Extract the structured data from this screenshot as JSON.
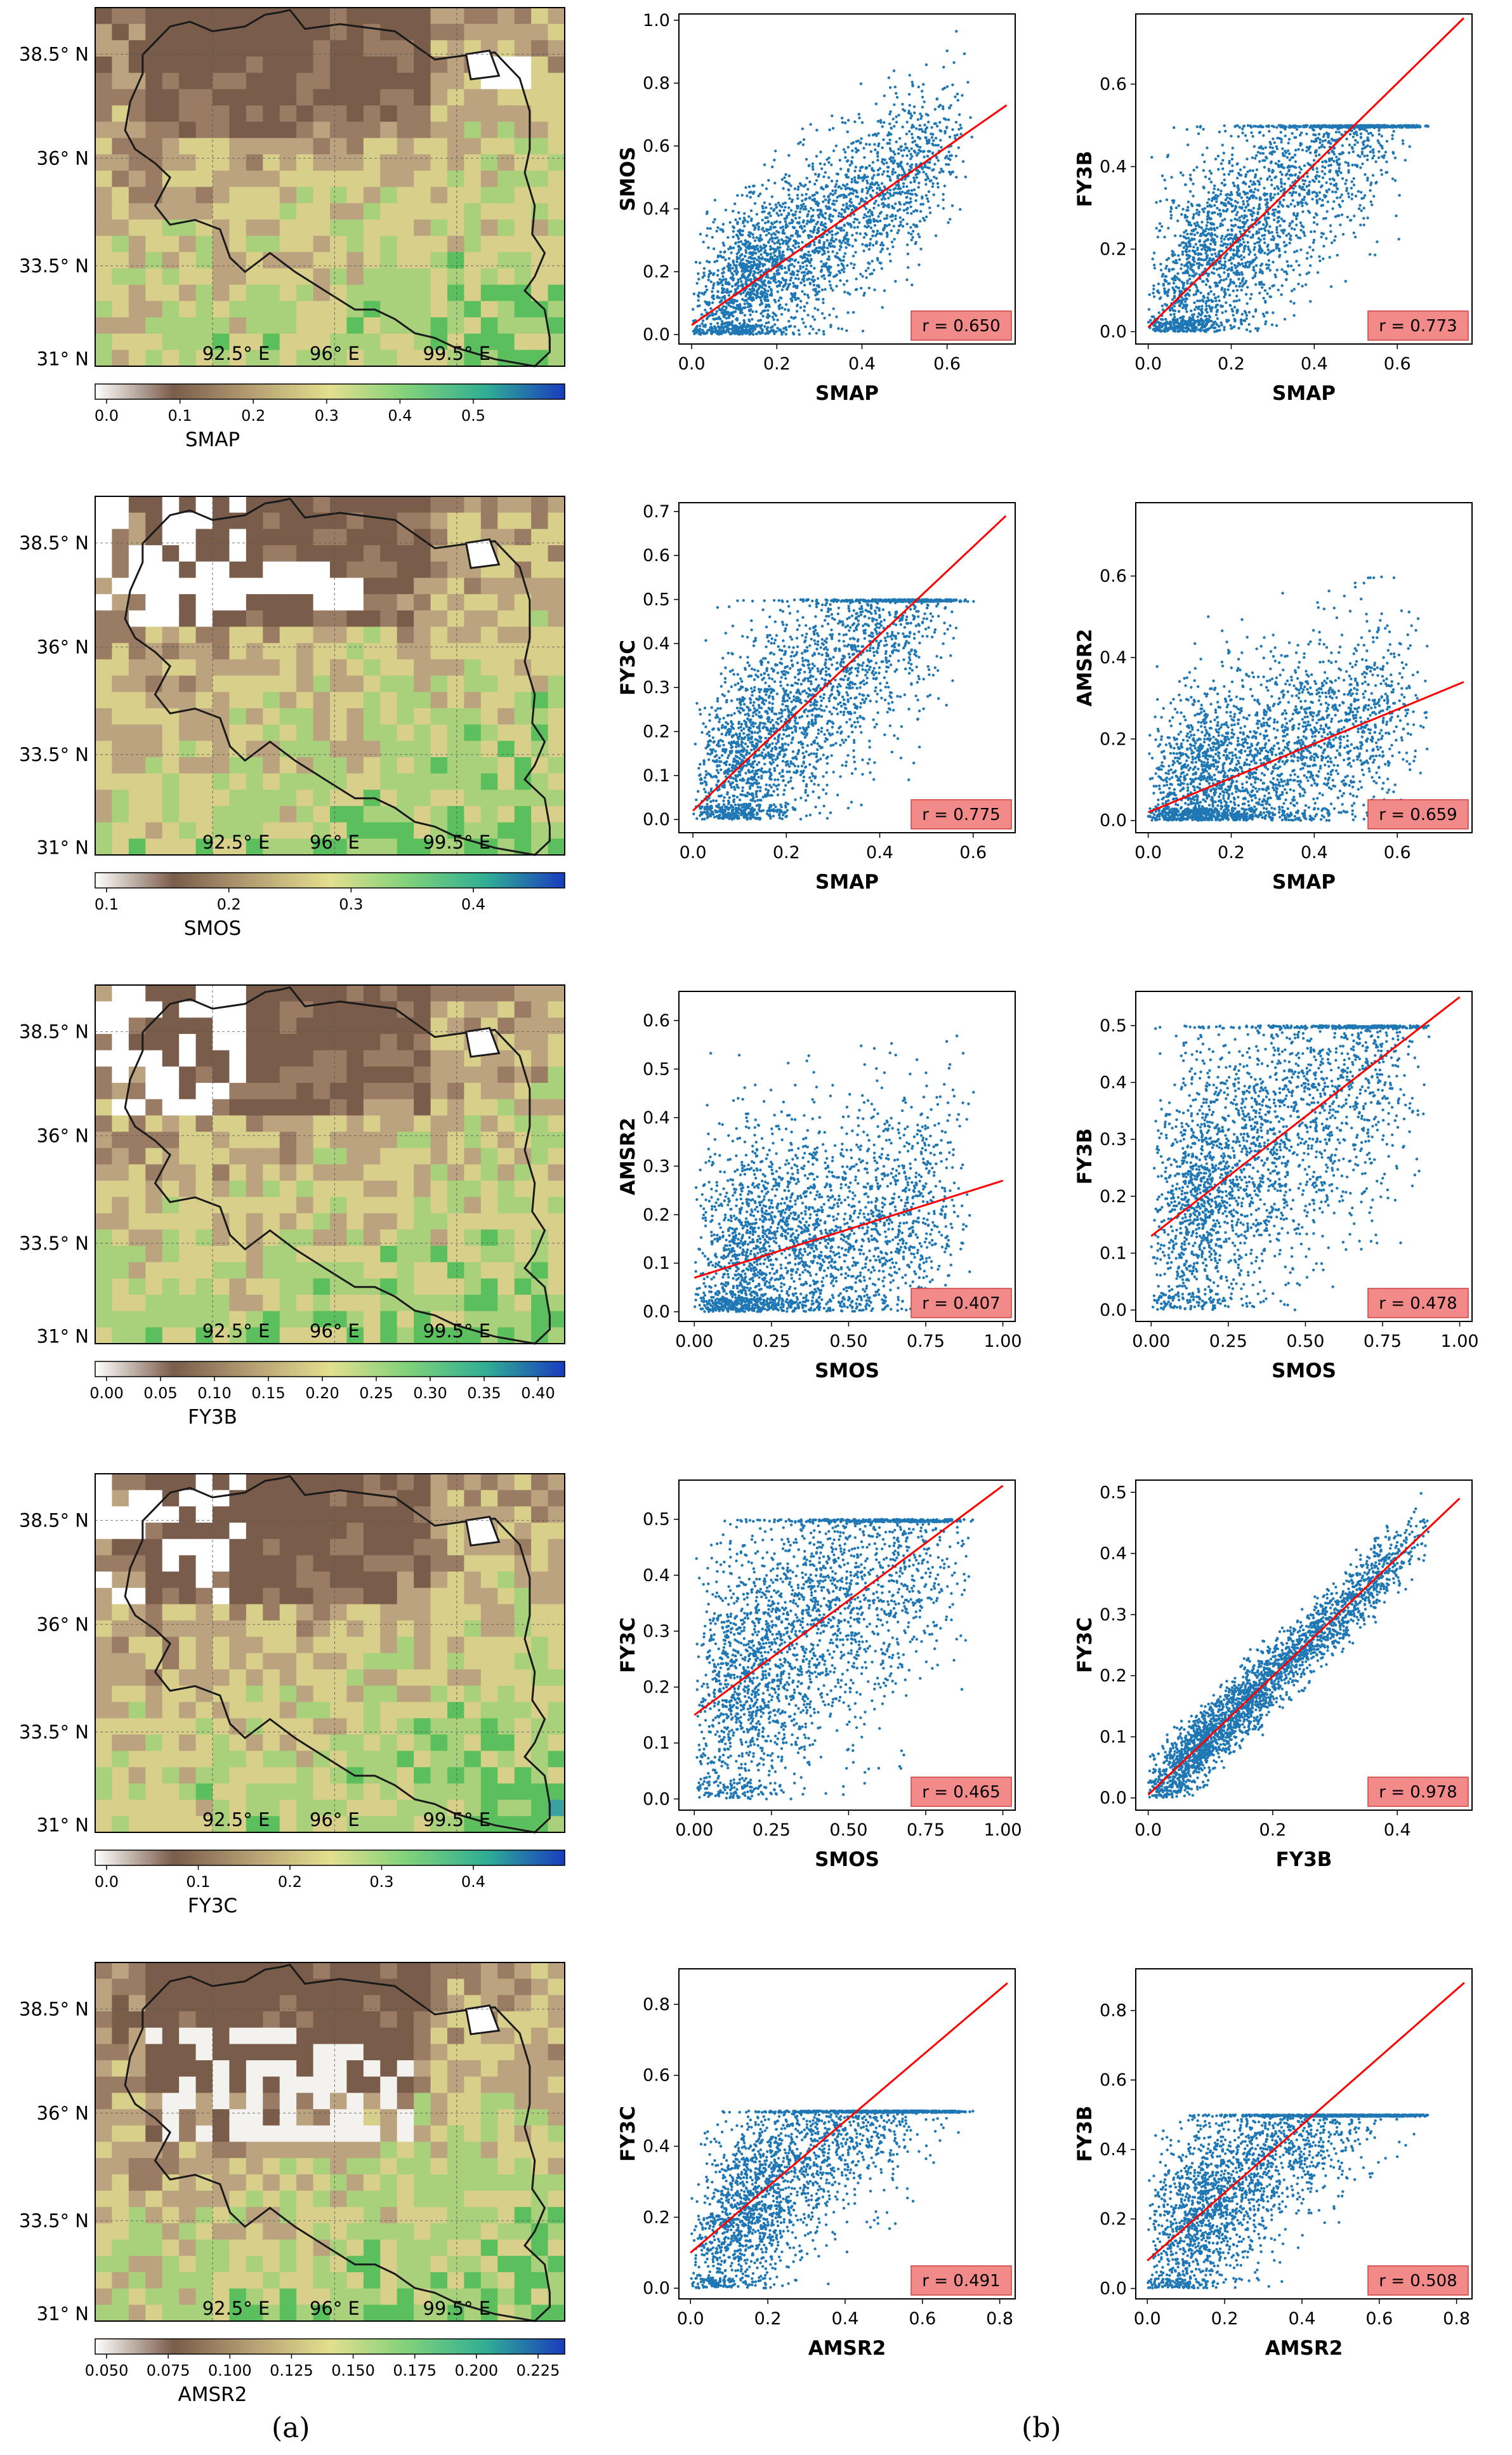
{
  "colors": {
    "scatter": "#1f77b4",
    "fit_line": "#ff0000",
    "r_box_fill": "#f28a8a",
    "r_box_stroke": "#d04040",
    "boundary": "#1a1a1a",
    "land_dry": "#7a5c4a",
    "land_mid": "#d8cf8a",
    "land_wet": "#5bbf5e",
    "water_high": "#2040b0",
    "missing": "#ffffff"
  },
  "captions": {
    "a": "(a)",
    "b": "(b)"
  },
  "maps": [
    {
      "name": "SMAP",
      "lat_ticks": [
        "38.5° N",
        "36° N",
        "33.5° N",
        "31° N"
      ],
      "lon_ticks": [
        "92.5° E",
        "96° E",
        "99.5° E"
      ],
      "colorbar_ticks": [
        "0.0",
        "0.1",
        "0.2",
        "0.3",
        "0.4",
        "0.5"
      ],
      "colorbar_label": "SMAP"
    },
    {
      "name": "SMOS",
      "lat_ticks": [
        "38.5° N",
        "36° N",
        "33.5° N",
        "31° N"
      ],
      "lon_ticks": [
        "92.5° E",
        "96° E",
        "99.5° E"
      ],
      "colorbar_ticks": [
        "0.1",
        "0.2",
        "0.3",
        "0.4"
      ],
      "colorbar_label": "SMOS"
    },
    {
      "name": "FY3B",
      "lat_ticks": [
        "38.5° N",
        "36° N",
        "33.5° N",
        "31° N"
      ],
      "lon_ticks": [
        "92.5° E",
        "96° E",
        "99.5° E"
      ],
      "colorbar_ticks": [
        "0.00",
        "0.05",
        "0.10",
        "0.15",
        "0.20",
        "0.25",
        "0.30",
        "0.35",
        "0.40"
      ],
      "colorbar_label": "FY3B"
    },
    {
      "name": "FY3C",
      "lat_ticks": [
        "38.5° N",
        "36° N",
        "33.5° N",
        "31° N"
      ],
      "lon_ticks": [
        "92.5° E",
        "96° E",
        "99.5° E"
      ],
      "colorbar_ticks": [
        "0.0",
        "0.1",
        "0.2",
        "0.3",
        "0.4"
      ],
      "colorbar_label": "FY3C"
    },
    {
      "name": "AMSR2",
      "lat_ticks": [
        "38.5° N",
        "36° N",
        "33.5° N",
        "31° N"
      ],
      "lon_ticks": [
        "92.5° E",
        "96° E",
        "99.5° E"
      ],
      "colorbar_ticks": [
        "0.050",
        "0.075",
        "0.100",
        "0.125",
        "0.150",
        "0.175",
        "0.200",
        "0.225"
      ],
      "colorbar_label": "AMSR2"
    }
  ],
  "chart_data": [
    {
      "type": "scatter",
      "xlabel": "SMAP",
      "ylabel": "SMOS",
      "xlim": [
        -0.03,
        0.76
      ],
      "ylim": [
        -0.03,
        1.02
      ],
      "xticks": [
        "0.0",
        "0.2",
        "0.4",
        "0.6"
      ],
      "yticks": [
        "0.0",
        "0.2",
        "0.4",
        "0.6",
        "0.8",
        "1.0"
      ],
      "r_label": "r = 0.650",
      "fit_line": {
        "x": [
          0.0,
          0.74
        ],
        "y": [
          0.03,
          0.73
        ]
      }
    },
    {
      "type": "scatter",
      "xlabel": "SMAP",
      "ylabel": "FY3B",
      "xlim": [
        -0.03,
        0.78
      ],
      "ylim": [
        -0.03,
        0.77
      ],
      "xticks": [
        "0.0",
        "0.2",
        "0.4",
        "0.6"
      ],
      "yticks": [
        "0.0",
        "0.2",
        "0.4",
        "0.6"
      ],
      "r_label": "r = 0.773",
      "fit_line": {
        "x": [
          0.0,
          0.76
        ],
        "y": [
          0.01,
          0.76
        ]
      }
    },
    {
      "type": "scatter",
      "xlabel": "SMAP",
      "ylabel": "FY3C",
      "xlim": [
        -0.03,
        0.69
      ],
      "ylim": [
        -0.03,
        0.72
      ],
      "xticks": [
        "0.0",
        "0.2",
        "0.4",
        "0.6"
      ],
      "yticks": [
        "0.0",
        "0.1",
        "0.2",
        "0.3",
        "0.4",
        "0.5",
        "0.6",
        "0.7"
      ],
      "r_label": "r = 0.775",
      "fit_line": {
        "x": [
          0.0,
          0.67
        ],
        "y": [
          0.02,
          0.69
        ]
      }
    },
    {
      "type": "scatter",
      "xlabel": "SMAP",
      "ylabel": "AMSR2",
      "xlim": [
        -0.03,
        0.78
      ],
      "ylim": [
        -0.03,
        0.78
      ],
      "xticks": [
        "0.0",
        "0.2",
        "0.4",
        "0.6"
      ],
      "yticks": [
        "0.0",
        "0.2",
        "0.4",
        "0.6"
      ],
      "r_label": "r = 0.659",
      "fit_line": {
        "x": [
          0.0,
          0.76
        ],
        "y": [
          0.02,
          0.34
        ]
      }
    },
    {
      "type": "scatter",
      "xlabel": "SMOS",
      "ylabel": "AMSR2",
      "xlim": [
        -0.05,
        1.04
      ],
      "ylim": [
        -0.02,
        0.66
      ],
      "xticks": [
        "0.00",
        "0.25",
        "0.50",
        "0.75",
        "1.00"
      ],
      "yticks": [
        "0.0",
        "0.1",
        "0.2",
        "0.3",
        "0.4",
        "0.5",
        "0.6"
      ],
      "r_label": "r = 0.407",
      "fit_line": {
        "x": [
          0.0,
          1.0
        ],
        "y": [
          0.07,
          0.27
        ]
      }
    },
    {
      "type": "scatter",
      "xlabel": "SMOS",
      "ylabel": "FY3B",
      "xlim": [
        -0.05,
        1.04
      ],
      "ylim": [
        -0.02,
        0.56
      ],
      "xticks": [
        "0.00",
        "0.25",
        "0.50",
        "0.75",
        "1.00"
      ],
      "yticks": [
        "0.0",
        "0.1",
        "0.2",
        "0.3",
        "0.4",
        "0.5"
      ],
      "r_label": "r = 0.478",
      "fit_line": {
        "x": [
          0.0,
          1.0
        ],
        "y": [
          0.13,
          0.55
        ]
      }
    },
    {
      "type": "scatter",
      "xlabel": "SMOS",
      "ylabel": "FY3C",
      "xlim": [
        -0.05,
        1.04
      ],
      "ylim": [
        -0.02,
        0.57
      ],
      "xticks": [
        "0.00",
        "0.25",
        "0.50",
        "0.75",
        "1.00"
      ],
      "yticks": [
        "0.0",
        "0.1",
        "0.2",
        "0.3",
        "0.4",
        "0.5"
      ],
      "r_label": "r = 0.465",
      "fit_line": {
        "x": [
          0.0,
          1.0
        ],
        "y": [
          0.15,
          0.56
        ]
      }
    },
    {
      "type": "scatter",
      "xlabel": "FY3B",
      "ylabel": "FY3C",
      "xlim": [
        -0.02,
        0.52
      ],
      "ylim": [
        -0.02,
        0.52
      ],
      "xticks": [
        "0.0",
        "0.2",
        "0.4"
      ],
      "yticks": [
        "0.0",
        "0.1",
        "0.2",
        "0.3",
        "0.4",
        "0.5"
      ],
      "r_label": "r = 0.978",
      "fit_line": {
        "x": [
          0.0,
          0.5
        ],
        "y": [
          0.005,
          0.49
        ]
      }
    },
    {
      "type": "scatter",
      "xlabel": "AMSR2",
      "ylabel": "FY3C",
      "xlim": [
        -0.03,
        0.84
      ],
      "ylim": [
        -0.03,
        0.9
      ],
      "xticks": [
        "0.0",
        "0.2",
        "0.4",
        "0.6",
        "0.8"
      ],
      "yticks": [
        "0.0",
        "0.2",
        "0.4",
        "0.6",
        "0.8"
      ],
      "r_label": "r = 0.491",
      "fit_line": {
        "x": [
          0.0,
          0.82
        ],
        "y": [
          0.1,
          0.86
        ]
      }
    },
    {
      "type": "scatter",
      "xlabel": "AMSR2",
      "ylabel": "FY3B",
      "xlim": [
        -0.03,
        0.84
      ],
      "ylim": [
        -0.03,
        0.92
      ],
      "xticks": [
        "0.0",
        "0.2",
        "0.4",
        "0.6",
        "0.8"
      ],
      "yticks": [
        "0.0",
        "0.2",
        "0.4",
        "0.6",
        "0.8"
      ],
      "r_label": "r = 0.508",
      "fit_line": {
        "x": [
          0.0,
          0.82
        ],
        "y": [
          0.08,
          0.88
        ]
      }
    }
  ]
}
